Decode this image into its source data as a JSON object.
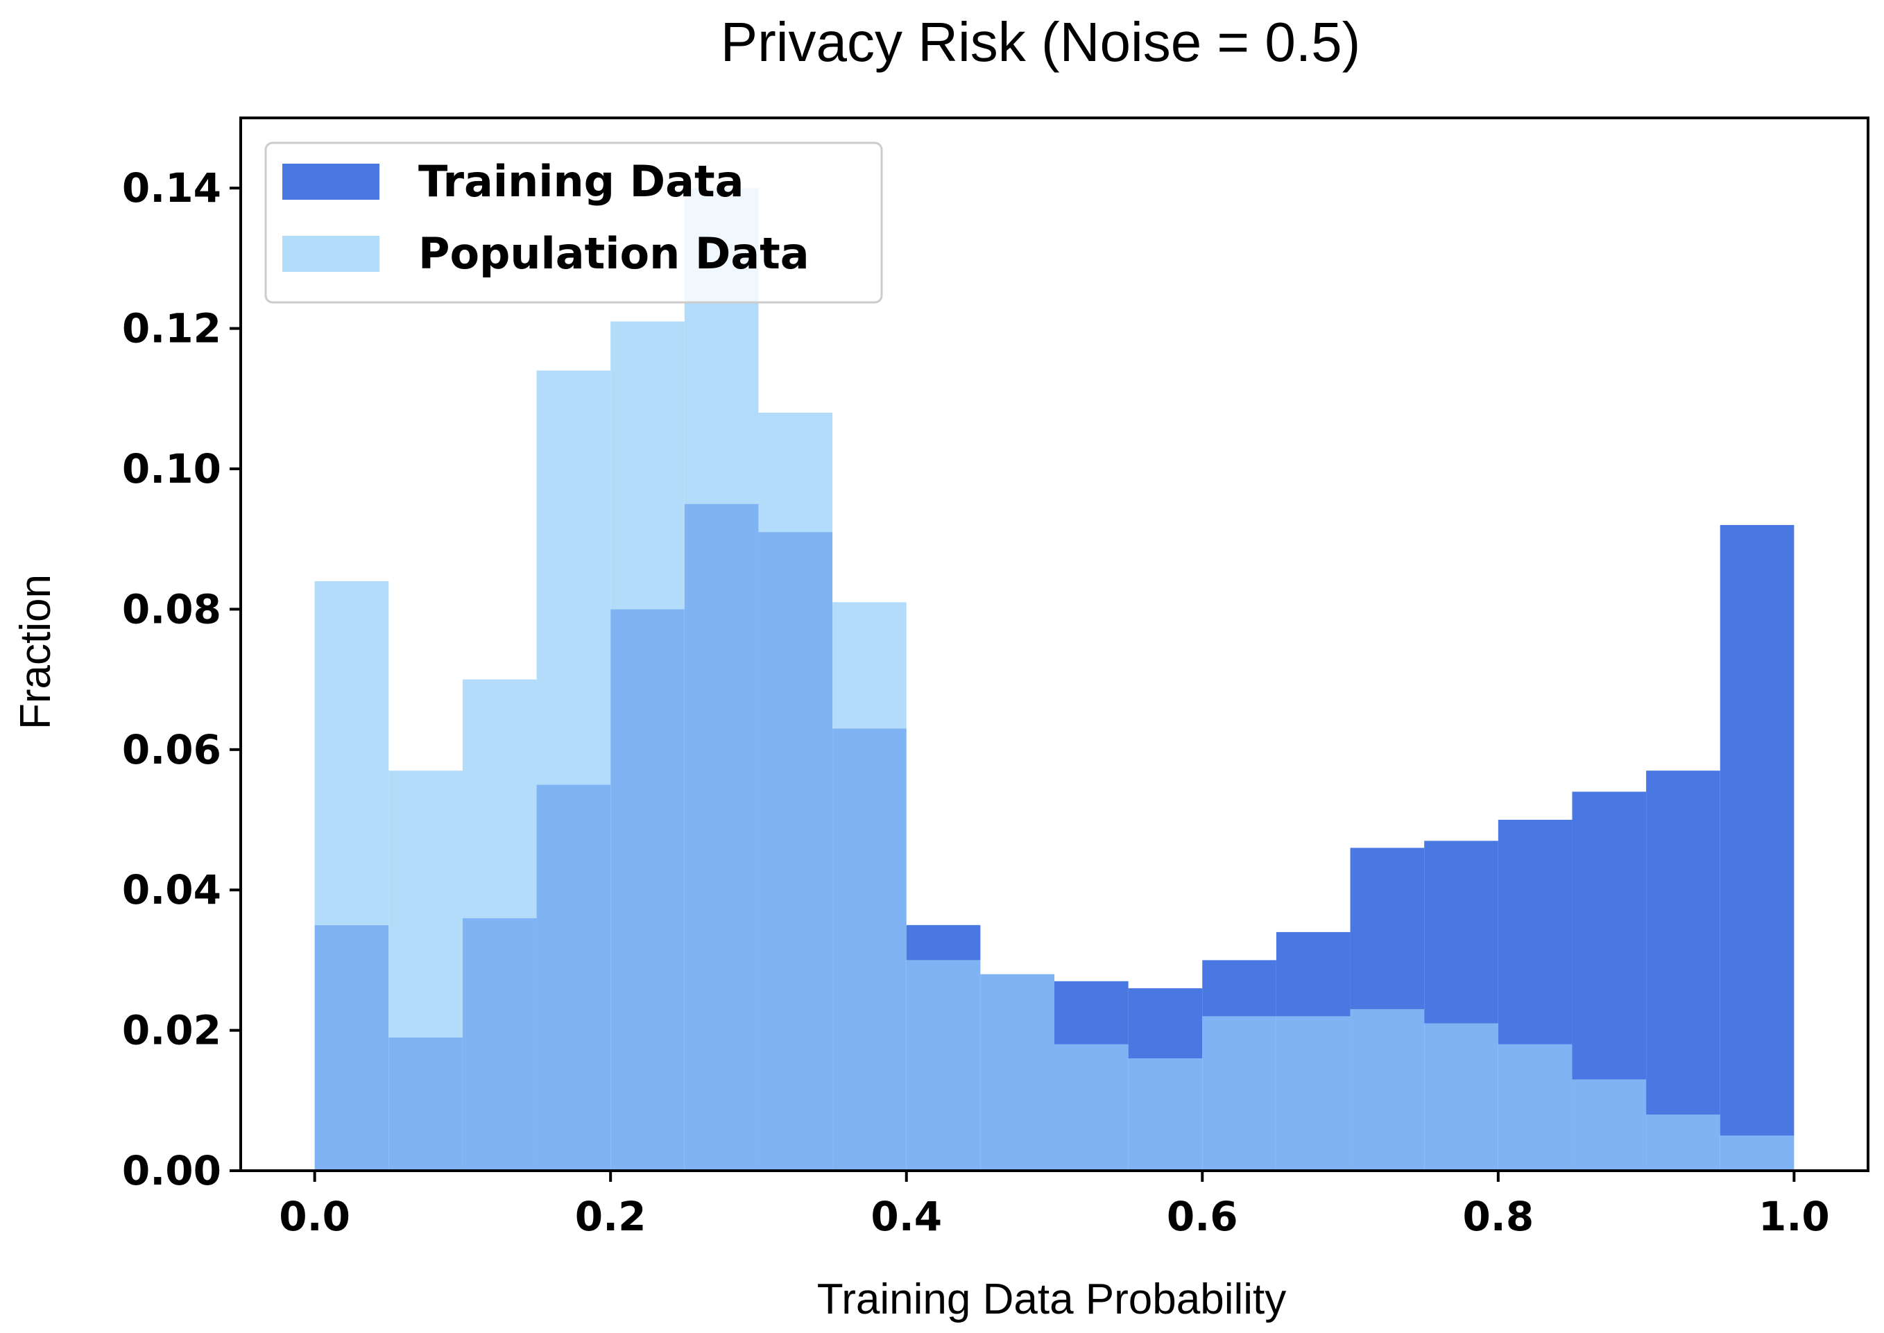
{
  "chart_data": {
    "type": "bar",
    "title": "Privacy Risk (Noise = 0.5)",
    "xlabel": "Training Data Probability",
    "ylabel": "Fraction",
    "xlim": [
      -0.05,
      1.05
    ],
    "ylim": [
      0,
      0.15
    ],
    "xticks": [
      "0.0",
      "0.2",
      "0.4",
      "0.6",
      "0.8",
      "1.0"
    ],
    "yticks": [
      "0.00",
      "0.02",
      "0.04",
      "0.06",
      "0.08",
      "0.10",
      "0.12",
      "0.14"
    ],
    "bin_edges": [
      0.0,
      0.05,
      0.1,
      0.15,
      0.2,
      0.25,
      0.3,
      0.35,
      0.4,
      0.45,
      0.5,
      0.55,
      0.6,
      0.65,
      0.7,
      0.75,
      0.8,
      0.85,
      0.9,
      0.95,
      1.0
    ],
    "legend_position": "top-left",
    "series": [
      {
        "name": "Training Data",
        "color": "#4a78e3",
        "values": [
          0.035,
          0.019,
          0.036,
          0.055,
          0.08,
          0.095,
          0.091,
          0.063,
          0.035,
          0.028,
          0.027,
          0.026,
          0.03,
          0.034,
          0.046,
          0.047,
          0.05,
          0.054,
          0.057,
          0.092
        ]
      },
      {
        "name": "Population Data",
        "color": "#b3dcfb",
        "values": [
          0.084,
          0.057,
          0.07,
          0.114,
          0.121,
          0.14,
          0.108,
          0.081,
          0.03,
          0.028,
          0.018,
          0.016,
          0.022,
          0.022,
          0.023,
          0.021,
          0.018,
          0.013,
          0.008,
          0.005
        ]
      }
    ],
    "overlap_color": "#7fb3f3"
  }
}
